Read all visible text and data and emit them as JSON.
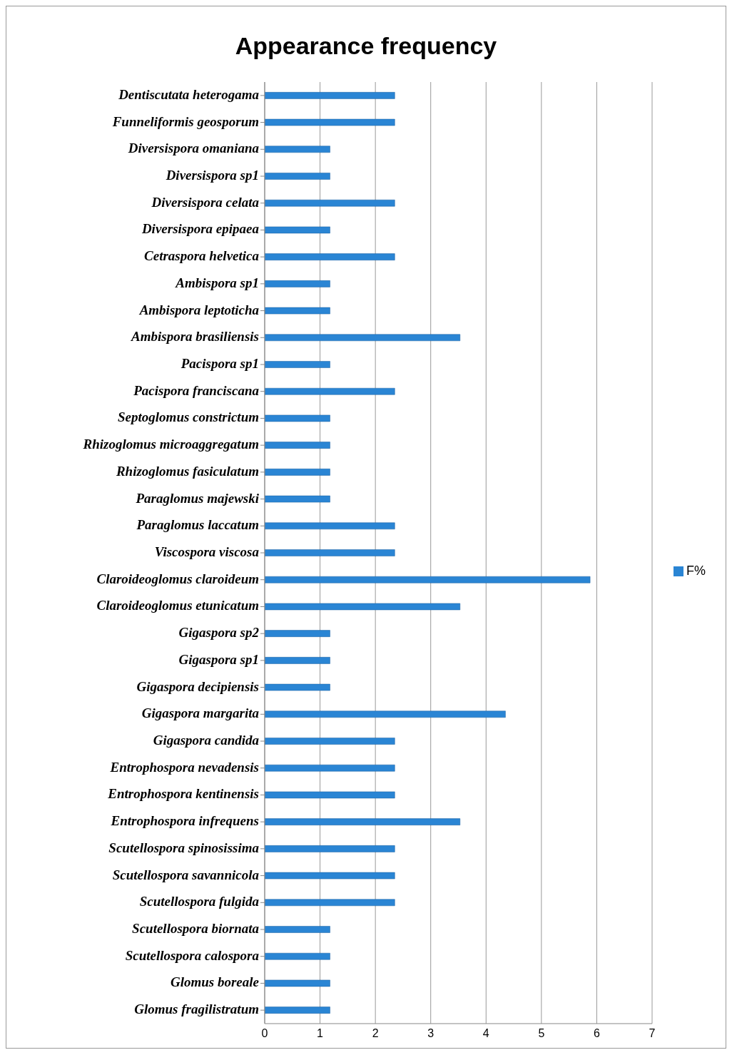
{
  "chart_data": {
    "type": "bar",
    "orientation": "horizontal",
    "title": "Appearance frequency",
    "categories": [
      "Dentiscutata heterogama",
      "Funneliformis geosporum",
      "Diversispora omaniana",
      "Diversispora sp1",
      "Diversispora celata",
      "Diversispora epipaea",
      "Cetraspora helvetica",
      "Ambispora sp1",
      "Ambispora leptoticha",
      "Ambispora brasiliensis",
      "Pacispora sp1",
      "Pacispora franciscana",
      "Septoglomus constrictum",
      "Rhizoglomus microaggregatum",
      "Rhizoglomus fasiculatum",
      "Paraglomus majewski",
      "Paraglomus laccatum",
      "Viscospora viscosa",
      "Claroideoglomus claroideum",
      "Claroideoglomus etunicatum",
      "Gigaspora sp2",
      "Gigaspora sp1",
      "Gigaspora decipiensis",
      "Gigaspora margarita",
      "Gigaspora candida",
      "Entrophospora nevadensis",
      "Entrophospora kentinensis",
      "Entrophospora infrequens",
      "Scutellospora spinosissima",
      "Scutellospora savannicola",
      "Scutellospora fulgida",
      "Scutellospora biornata",
      "Scutellospora calospora",
      "Glomus boreale",
      "Glomus fragilistratum"
    ],
    "series": [
      {
        "name": "F%",
        "color": "#2a85d4",
        "values": [
          2.35,
          2.35,
          1.18,
          1.18,
          2.35,
          1.18,
          2.35,
          1.18,
          1.18,
          3.53,
          1.18,
          2.35,
          1.18,
          1.18,
          1.18,
          1.18,
          2.35,
          2.35,
          5.88,
          3.53,
          1.18,
          1.18,
          1.18,
          4.35,
          2.35,
          2.35,
          2.35,
          3.53,
          2.35,
          2.35,
          2.35,
          1.18,
          1.18,
          1.18,
          1.18
        ]
      }
    ],
    "xlim": [
      0,
      7
    ],
    "xticks": [
      0,
      1,
      2,
      3,
      4,
      5,
      6,
      7
    ],
    "grid": "x",
    "legend": "right"
  }
}
